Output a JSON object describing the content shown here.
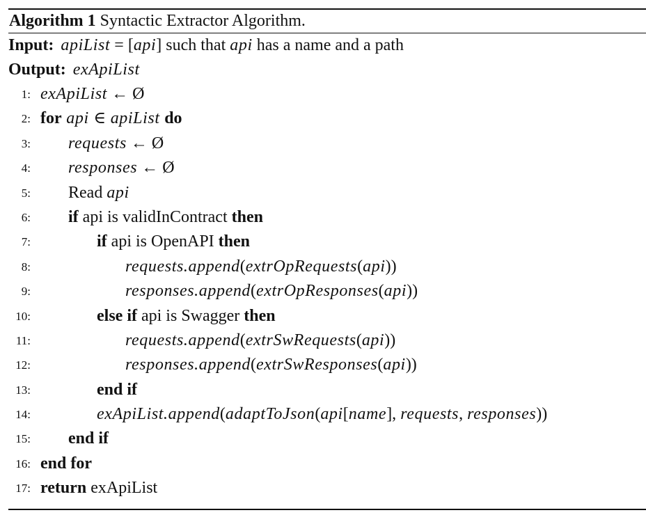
{
  "caption": {
    "label": "Algorithm 1",
    "title": "Syntactic Extractor Algorithm."
  },
  "input": {
    "keyword": "Input:",
    "lhs": "apiList",
    "mid": " = [",
    "arg": "api",
    "rest1": "] such that ",
    "arg2": "api",
    "rest2": " has a name and a path"
  },
  "output": {
    "keyword": "Output:",
    "value": "exApiList"
  },
  "lines": [
    {
      "num": "1:"
    },
    {
      "num": "2:"
    },
    {
      "num": "3:"
    },
    {
      "num": "4:"
    },
    {
      "num": "5:"
    },
    {
      "num": "6:"
    },
    {
      "num": "7:"
    },
    {
      "num": "8:"
    },
    {
      "num": "9:"
    },
    {
      "num": "10:"
    },
    {
      "num": "11:"
    },
    {
      "num": "12:"
    },
    {
      "num": "13:"
    },
    {
      "num": "14:"
    },
    {
      "num": "15:"
    },
    {
      "num": "16:"
    },
    {
      "num": "17:"
    }
  ],
  "code": {
    "l1": {
      "a": "exApiList",
      "b": " ← Ø"
    },
    "l2": {
      "for": "for",
      "a": " api ",
      "in": "∈",
      "b": " apiList ",
      "do": "do"
    },
    "l3": {
      "a": "requests",
      "b": " ← Ø"
    },
    "l4": {
      "a": "responses",
      "b": " ← Ø"
    },
    "l5": {
      "a": "Read ",
      "b": "api"
    },
    "l6": {
      "if": "if",
      "a": " api is validInContract ",
      "then": "then"
    },
    "l7": {
      "if": "if",
      "a": " api is OpenAPI ",
      "then": "then"
    },
    "l8": {
      "a": "requests.append",
      "b": "(",
      "c": "extrOpRequests",
      "d": "(",
      "e": "api",
      "f": "))"
    },
    "l9": {
      "a": "responses.append",
      "b": "(",
      "c": "extrOpResponses",
      "d": "(",
      "e": "api",
      "f": "))"
    },
    "l10": {
      "else": "else if",
      "a": " api is Swagger ",
      "then": "then"
    },
    "l11": {
      "a": "requests.append",
      "b": "(",
      "c": "extrSwRequests",
      "d": "(",
      "e": "api",
      "f": "))"
    },
    "l12": {
      "a": "responses.append",
      "b": "(",
      "c": "extrSwResponses",
      "d": "(",
      "e": "api",
      "f": "))"
    },
    "l13": {
      "end": "end if"
    },
    "l14": {
      "a": "exApiList.append",
      "b": "(",
      "c": "adaptToJson",
      "d": "(",
      "e": "api",
      "f": "[",
      "g": "name",
      "h": "], ",
      "i": "requests",
      "j": ", ",
      "k": "responses",
      "l": "))"
    },
    "l15": {
      "end": "end if"
    },
    "l16": {
      "end": "end for"
    },
    "l17": {
      "ret": "return",
      "a": " exApiList"
    }
  }
}
